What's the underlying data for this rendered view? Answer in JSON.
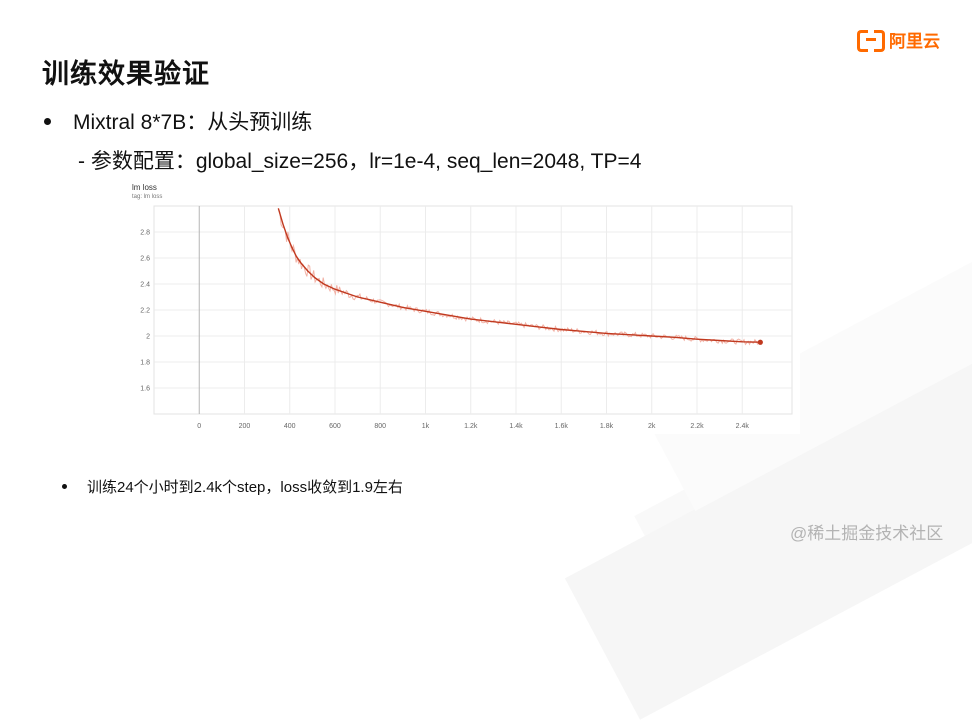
{
  "slide": {
    "title": "训练效果验证",
    "bullet_1": "Mixtral 8*7B：从头预训练",
    "sub_bullet_1": "- 参数配置：global_size=256，lr=1e-4, seq_len=2048, TP=4",
    "bullet_2": "训练24个小时到2.4k个step，loss收敛到1.9左右",
    "logo_text": "阿里云",
    "watermark": "@稀土掘金技术社区"
  },
  "colors": {
    "accent": "#ff6a00",
    "smoothed_line": "#c0391f",
    "raw_line": "#f2b2a6"
  },
  "chart_data": {
    "type": "line",
    "title": "lm loss",
    "subtitle": "tag: lm loss",
    "xlabel": "",
    "ylabel": "",
    "xlim": [
      -200,
      2620
    ],
    "ylim": [
      1.4,
      3.0
    ],
    "x_ticks": [
      0,
      200,
      400,
      600,
      800,
      1000,
      1200,
      1400,
      1600,
      1800,
      2000,
      2200,
      2400
    ],
    "x_tick_labels": [
      "0",
      "200",
      "400",
      "600",
      "800",
      "1k",
      "1.2k",
      "1.4k",
      "1.6k",
      "1.8k",
      "2k",
      "2.2k",
      "2.4k"
    ],
    "y_ticks": [
      1.6,
      1.8,
      2,
      2.2,
      2.4,
      2.6,
      2.8
    ],
    "y_tick_labels": [
      "1.6",
      "1.8",
      "2",
      "2.2",
      "2.4",
      "2.6",
      "2.8"
    ],
    "grid": true,
    "series": [
      {
        "x": [
          350,
          370,
          390,
          410,
          430,
          450,
          480,
          510,
          550,
          600,
          650,
          700,
          750,
          800,
          850,
          900,
          1000,
          1100,
          1200,
          1300,
          1400,
          1500,
          1600,
          1700,
          1800,
          1900,
          2000,
          2100,
          2200,
          2300,
          2400,
          2480
        ],
        "values": [
          2.98,
          2.86,
          2.76,
          2.68,
          2.61,
          2.56,
          2.5,
          2.45,
          2.4,
          2.36,
          2.33,
          2.3,
          2.28,
          2.26,
          2.24,
          2.22,
          2.19,
          2.16,
          2.13,
          2.11,
          2.09,
          2.07,
          2.05,
          2.035,
          2.02,
          2.01,
          2.0,
          1.99,
          1.975,
          1.965,
          1.955,
          1.952
        ]
      }
    ]
  }
}
